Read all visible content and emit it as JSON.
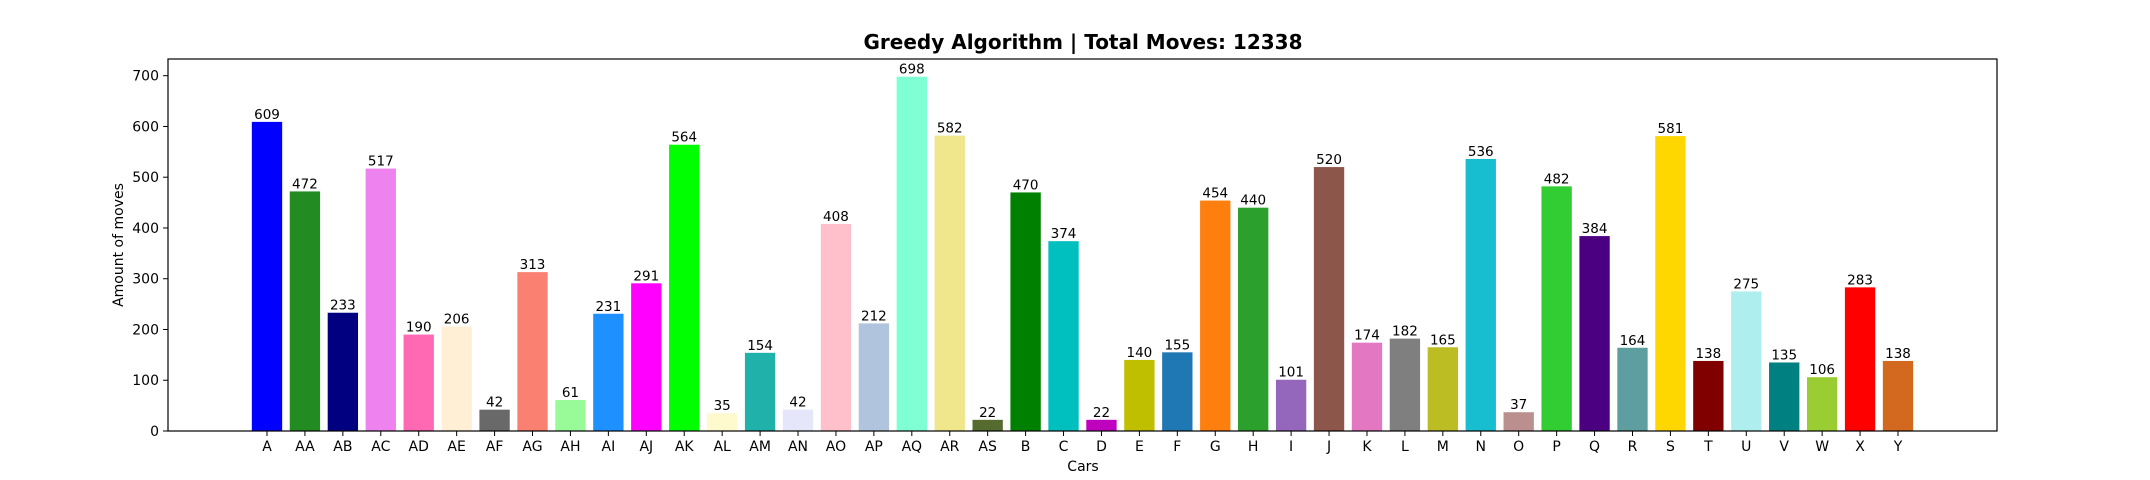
{
  "chart_data": {
    "type": "bar",
    "title": "Greedy Algorithm | Total Moves: 12338",
    "xlabel": "Cars",
    "ylabel": "Amount of moves",
    "ylim": [
      0,
      732.9
    ],
    "yticks": [
      0,
      100,
      200,
      300,
      400,
      500,
      600,
      700
    ],
    "grid": false,
    "categories": [
      "A",
      "AA",
      "AB",
      "AC",
      "AD",
      "AE",
      "AF",
      "AG",
      "AH",
      "AI",
      "AJ",
      "AK",
      "AL",
      "AM",
      "AN",
      "AO",
      "AP",
      "AQ",
      "AR",
      "AS",
      "B",
      "C",
      "D",
      "E",
      "F",
      "G",
      "H",
      "I",
      "J",
      "K",
      "L",
      "M",
      "N",
      "O",
      "P",
      "Q",
      "R",
      "S",
      "T",
      "U",
      "V",
      "W",
      "X",
      "Y"
    ],
    "values": [
      609,
      472,
      233,
      517,
      190,
      206,
      42,
      313,
      61,
      231,
      291,
      564,
      35,
      154,
      42,
      408,
      212,
      698,
      582,
      22,
      470,
      374,
      22,
      140,
      155,
      454,
      440,
      101,
      520,
      174,
      182,
      165,
      536,
      37,
      482,
      384,
      164,
      581,
      138,
      275,
      135,
      106,
      283,
      138
    ],
    "colors": [
      "#0000ff",
      "#228b22",
      "#000080",
      "#ee82ee",
      "#ff69b4",
      "#ffefd5",
      "#696969",
      "#fa8072",
      "#98fb98",
      "#1e90ff",
      "#ff00ff",
      "#00ff00",
      "#fffacd",
      "#20b2aa",
      "#e6e6fa",
      "#ffc0cb",
      "#b0c4de",
      "#7fffd4",
      "#f0e68c",
      "#556b2f",
      "#008000",
      "#00bfbf",
      "#bf00bf",
      "#bfbf00",
      "#1f77b4",
      "#ff7f0e",
      "#2ca02c",
      "#9467bd",
      "#8c564b",
      "#e377c2",
      "#7f7f7f",
      "#bcbd22",
      "#17becf",
      "#bc8f8f",
      "#32cd32",
      "#4b0082",
      "#5f9ea0",
      "#ffd700",
      "#800000",
      "#afeeee",
      "#008080",
      "#9acd32",
      "#ff0000",
      "#d2691e"
    ]
  }
}
